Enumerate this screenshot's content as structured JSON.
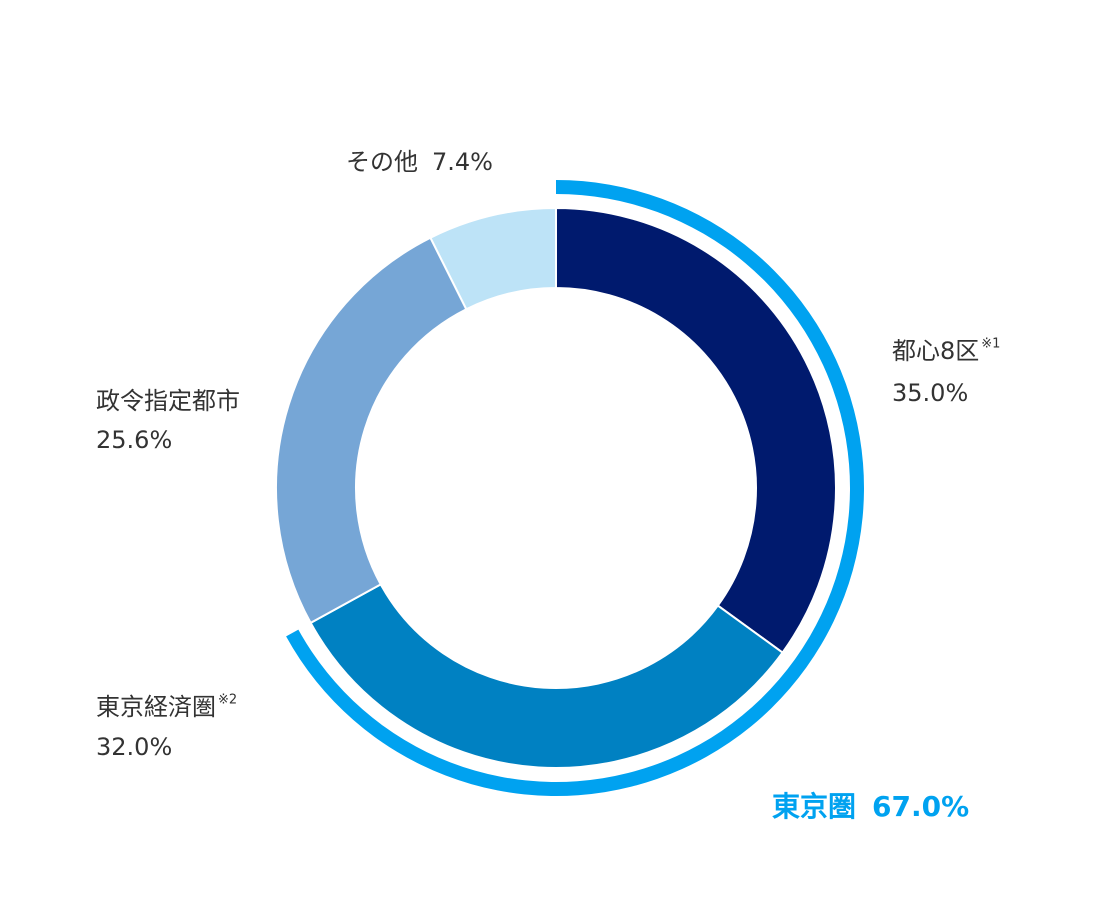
{
  "chart_data": {
    "type": "donut",
    "categories": [
      "都心8区",
      "東京経済圏",
      "政令指定都市",
      "その他"
    ],
    "footnotes": [
      "※1",
      "※2",
      null,
      null
    ],
    "values": [
      35.0,
      32.0,
      25.6,
      7.4
    ],
    "value_labels": [
      "35.0%",
      "32.0%",
      "25.6%",
      "7.4%"
    ],
    "colors": [
      "#001a6e",
      "#0081c2",
      "#76a6d6",
      "#bde3f7"
    ],
    "group": {
      "label": "東京圏",
      "value": 67.0,
      "value_label": "67.0%",
      "color": "#00a2f0"
    }
  }
}
